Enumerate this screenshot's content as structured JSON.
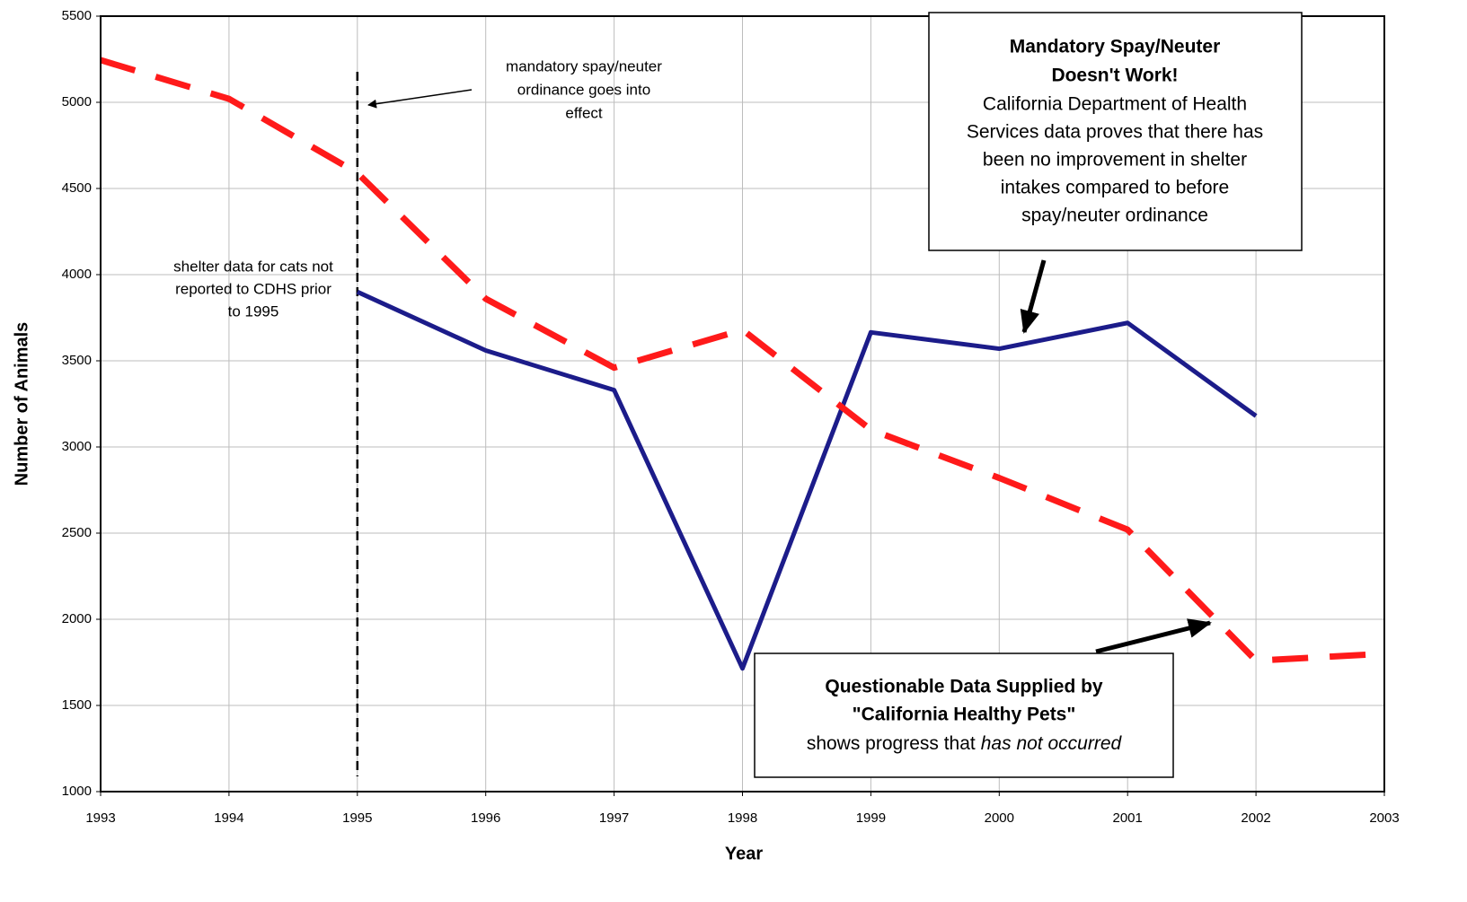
{
  "chart_data": {
    "type": "line",
    "x_label": "Year",
    "y_label": "Number of Animals",
    "x": [
      1993,
      1994,
      1995,
      1996,
      1997,
      1998,
      1999,
      2000,
      2001,
      2002,
      2003
    ],
    "series": [
      {
        "color": "#1c1c8a",
        "dashed": false,
        "values": [
          null,
          null,
          3900,
          3560,
          3330,
          1715,
          3665,
          3570,
          3720,
          3180,
          null
        ]
      },
      {
        "color": "#ff1a1a",
        "dashed": true,
        "values": [
          5245,
          5020,
          4590,
          3860,
          3460,
          3680,
          3100,
          2820,
          2520,
          1760,
          1800
        ]
      }
    ],
    "xlim": [
      1993,
      2003
    ],
    "xticks": [
      1993,
      1994,
      1995,
      1996,
      1997,
      1998,
      1999,
      2000,
      2001,
      2002,
      2003
    ],
    "ylim": [
      1000,
      5500
    ],
    "yticks": [
      1000,
      1500,
      2000,
      2500,
      3000,
      3500,
      4000,
      4500,
      5000,
      5500
    ],
    "grid": true,
    "annotations": {
      "ordinance": [
        "mandatory spay/neuter",
        "ordinance goes into",
        "effect"
      ],
      "shelter_note": [
        "shelter data for cats not",
        "reported to CDHS prior",
        "to 1995"
      ],
      "box_top": {
        "title": [
          "Mandatory Spay/Neuter",
          "Doesn't Work!"
        ],
        "body": [
          "California Department of Health",
          "Services data proves that there has",
          "been no improvement in shelter",
          "intakes compared to before",
          "spay/neuter ordinance"
        ]
      },
      "box_bottom": {
        "title": [
          "Questionable Data Supplied by",
          "\"California Healthy Pets\""
        ],
        "body_plain": "shows progress that",
        "body_italic": "has not occurred"
      }
    }
  }
}
